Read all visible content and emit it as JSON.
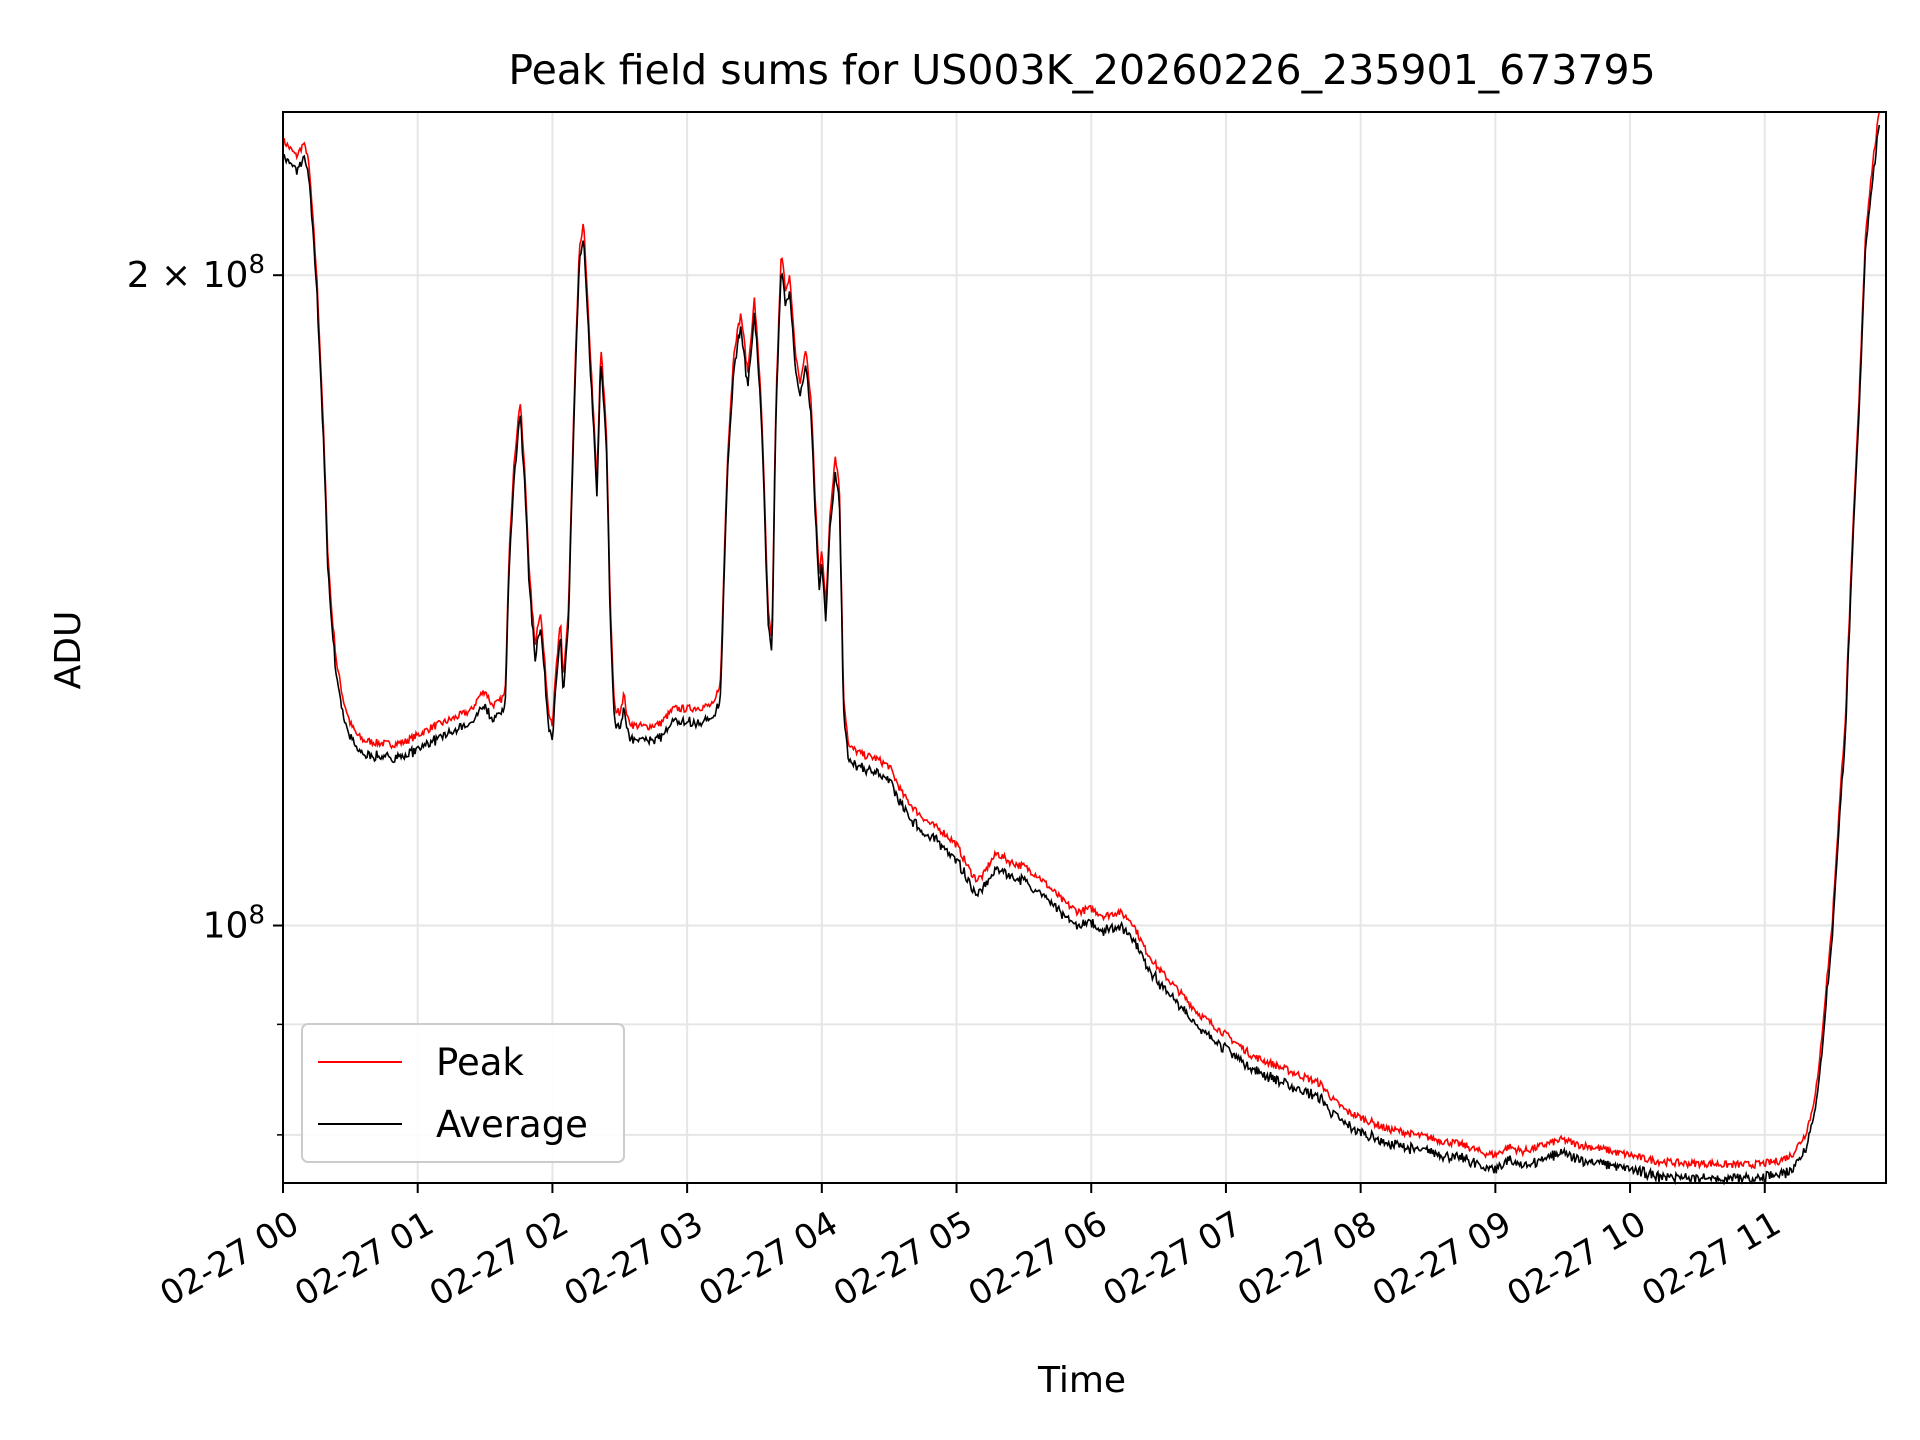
{
  "chart_data": {
    "type": "line",
    "title": "Peak field sums for US003K_20260226_235901_673795",
    "xlabel": "Time",
    "ylabel": "ADU",
    "yscale": "log",
    "grid": true,
    "legend_position": "lower-left",
    "x_ticks": [
      "02-27 00",
      "02-27 01",
      "02-27 02",
      "02-27 03",
      "02-27 04",
      "02-27 05",
      "02-27 06",
      "02-27 07",
      "02-27 08",
      "02-27 09",
      "02-27 10",
      "02-27 11"
    ],
    "y_ticks": [
      {
        "value": 100000000,
        "base": "10",
        "exp": "8",
        "prefix": ""
      },
      {
        "value": 200000000,
        "base": "10",
        "exp": "8",
        "prefix": "2 × "
      }
    ],
    "xlim_hours": [
      0,
      11.9
    ],
    "ylim": [
      76000000,
      238000000
    ],
    "series": [
      {
        "name": "Peak",
        "color": "#ff0000",
        "offset_factor": 1.0
      },
      {
        "name": "Average",
        "color": "#000000",
        "offset_factor": 0.985
      }
    ],
    "points": [
      [
        0.0,
        231
      ],
      [
        0.05,
        229
      ],
      [
        0.1,
        227
      ],
      [
        0.15,
        230
      ],
      [
        0.18,
        228
      ],
      [
        0.2,
        222
      ],
      [
        0.25,
        200
      ],
      [
        0.3,
        170
      ],
      [
        0.33,
        150
      ],
      [
        0.36,
        140
      ],
      [
        0.4,
        132
      ],
      [
        0.45,
        127
      ],
      [
        0.5,
        124
      ],
      [
        0.55,
        122.5
      ],
      [
        0.6,
        121.8
      ],
      [
        0.7,
        121.5
      ],
      [
        0.8,
        121.3
      ],
      [
        0.9,
        121.6
      ],
      [
        1.0,
        122.5
      ],
      [
        1.1,
        123.5
      ],
      [
        1.2,
        124.2
      ],
      [
        1.3,
        125
      ],
      [
        1.4,
        125.8
      ],
      [
        1.45,
        127.5
      ],
      [
        1.5,
        128.5
      ],
      [
        1.55,
        126.5
      ],
      [
        1.6,
        126.8
      ],
      [
        1.65,
        128
      ],
      [
        1.68,
        150
      ],
      [
        1.72,
        165
      ],
      [
        1.76,
        175
      ],
      [
        1.8,
        160
      ],
      [
        1.83,
        145
      ],
      [
        1.87,
        135
      ],
      [
        1.91,
        140
      ],
      [
        1.94,
        133
      ],
      [
        1.97,
        126
      ],
      [
        2.0,
        124
      ],
      [
        2.03,
        132
      ],
      [
        2.06,
        138
      ],
      [
        2.08,
        130
      ],
      [
        2.12,
        140
      ],
      [
        2.15,
        165
      ],
      [
        2.18,
        190
      ],
      [
        2.2,
        205
      ],
      [
        2.23,
        212
      ],
      [
        2.26,
        195
      ],
      [
        2.3,
        175
      ],
      [
        2.33,
        160
      ],
      [
        2.36,
        185
      ],
      [
        2.4,
        170
      ],
      [
        2.43,
        140
      ],
      [
        2.46,
        126
      ],
      [
        2.5,
        125.5
      ],
      [
        2.53,
        128
      ],
      [
        2.56,
        124.5
      ],
      [
        2.6,
        123.8
      ],
      [
        2.7,
        123.6
      ],
      [
        2.8,
        124
      ],
      [
        2.9,
        126
      ],
      [
        3.0,
        126
      ],
      [
        3.1,
        126.2
      ],
      [
        3.2,
        126.5
      ],
      [
        3.25,
        130
      ],
      [
        3.3,
        165
      ],
      [
        3.35,
        185
      ],
      [
        3.4,
        192
      ],
      [
        3.45,
        180
      ],
      [
        3.5,
        195
      ],
      [
        3.55,
        175
      ],
      [
        3.6,
        140
      ],
      [
        3.63,
        135
      ],
      [
        3.66,
        175
      ],
      [
        3.7,
        205
      ],
      [
        3.73,
        197
      ],
      [
        3.76,
        200
      ],
      [
        3.8,
        185
      ],
      [
        3.84,
        178
      ],
      [
        3.88,
        185
      ],
      [
        3.92,
        175
      ],
      [
        3.95,
        158
      ],
      [
        3.98,
        145
      ],
      [
        4.0,
        150
      ],
      [
        4.03,
        140
      ],
      [
        4.06,
        155
      ],
      [
        4.1,
        165
      ],
      [
        4.13,
        160
      ],
      [
        4.16,
        128
      ],
      [
        4.2,
        121
      ],
      [
        4.3,
        120
      ],
      [
        4.4,
        119.5
      ],
      [
        4.5,
        118.5
      ],
      [
        4.6,
        115
      ],
      [
        4.7,
        113
      ],
      [
        4.8,
        111.5
      ],
      [
        4.9,
        110.5
      ],
      [
        5.0,
        109
      ],
      [
        5.1,
        106
      ],
      [
        5.15,
        105
      ],
      [
        5.2,
        105.5
      ],
      [
        5.25,
        107
      ],
      [
        5.3,
        108
      ],
      [
        5.4,
        107
      ],
      [
        5.5,
        106.5
      ],
      [
        5.6,
        105.5
      ],
      [
        5.7,
        104
      ],
      [
        5.8,
        102.5
      ],
      [
        5.9,
        101.5
      ],
      [
        6.0,
        101.8
      ],
      [
        6.1,
        101
      ],
      [
        6.2,
        101.5
      ],
      [
        6.3,
        100.5
      ],
      [
        6.4,
        97.5
      ],
      [
        6.5,
        95.5
      ],
      [
        6.6,
        94
      ],
      [
        6.7,
        92.5
      ],
      [
        6.8,
        91
      ],
      [
        6.9,
        90
      ],
      [
        7.0,
        89
      ],
      [
        7.1,
        88
      ],
      [
        7.2,
        87
      ],
      [
        7.3,
        86.5
      ],
      [
        7.4,
        86
      ],
      [
        7.5,
        85.5
      ],
      [
        7.6,
        85
      ],
      [
        7.7,
        84.5
      ],
      [
        7.8,
        83
      ],
      [
        7.9,
        82
      ],
      [
        8.0,
        81.5
      ],
      [
        8.1,
        81
      ],
      [
        8.2,
        80.5
      ],
      [
        8.3,
        80.3
      ],
      [
        8.4,
        80
      ],
      [
        8.5,
        79.8
      ],
      [
        8.6,
        79.5
      ],
      [
        8.7,
        79.3
      ],
      [
        8.8,
        79
      ],
      [
        8.9,
        78.5
      ],
      [
        9.0,
        78.3
      ],
      [
        9.1,
        79
      ],
      [
        9.2,
        78.6
      ],
      [
        9.3,
        78.9
      ],
      [
        9.4,
        79.3
      ],
      [
        9.5,
        79.6
      ],
      [
        9.6,
        79.2
      ],
      [
        9.7,
        79
      ],
      [
        9.8,
        78.8
      ],
      [
        9.9,
        78.5
      ],
      [
        10.0,
        78.3
      ],
      [
        10.1,
        78
      ],
      [
        10.2,
        77.8
      ],
      [
        10.3,
        77.7
      ],
      [
        10.4,
        77.6
      ],
      [
        10.5,
        77.6
      ],
      [
        10.6,
        77.6
      ],
      [
        10.7,
        77.5
      ],
      [
        10.8,
        77.5
      ],
      [
        10.9,
        77.5
      ],
      [
        11.0,
        77.6
      ],
      [
        11.1,
        77.8
      ],
      [
        11.2,
        78.3
      ],
      [
        11.3,
        80
      ],
      [
        11.35,
        82
      ],
      [
        11.4,
        85.5
      ],
      [
        11.5,
        100
      ],
      [
        11.6,
        125
      ],
      [
        11.7,
        175
      ],
      [
        11.75,
        210
      ],
      [
        11.8,
        225
      ],
      [
        11.85,
        238
      ]
    ],
    "points_unit": "ADU (millions)",
    "x_unit": "hours after 02-27 00"
  }
}
